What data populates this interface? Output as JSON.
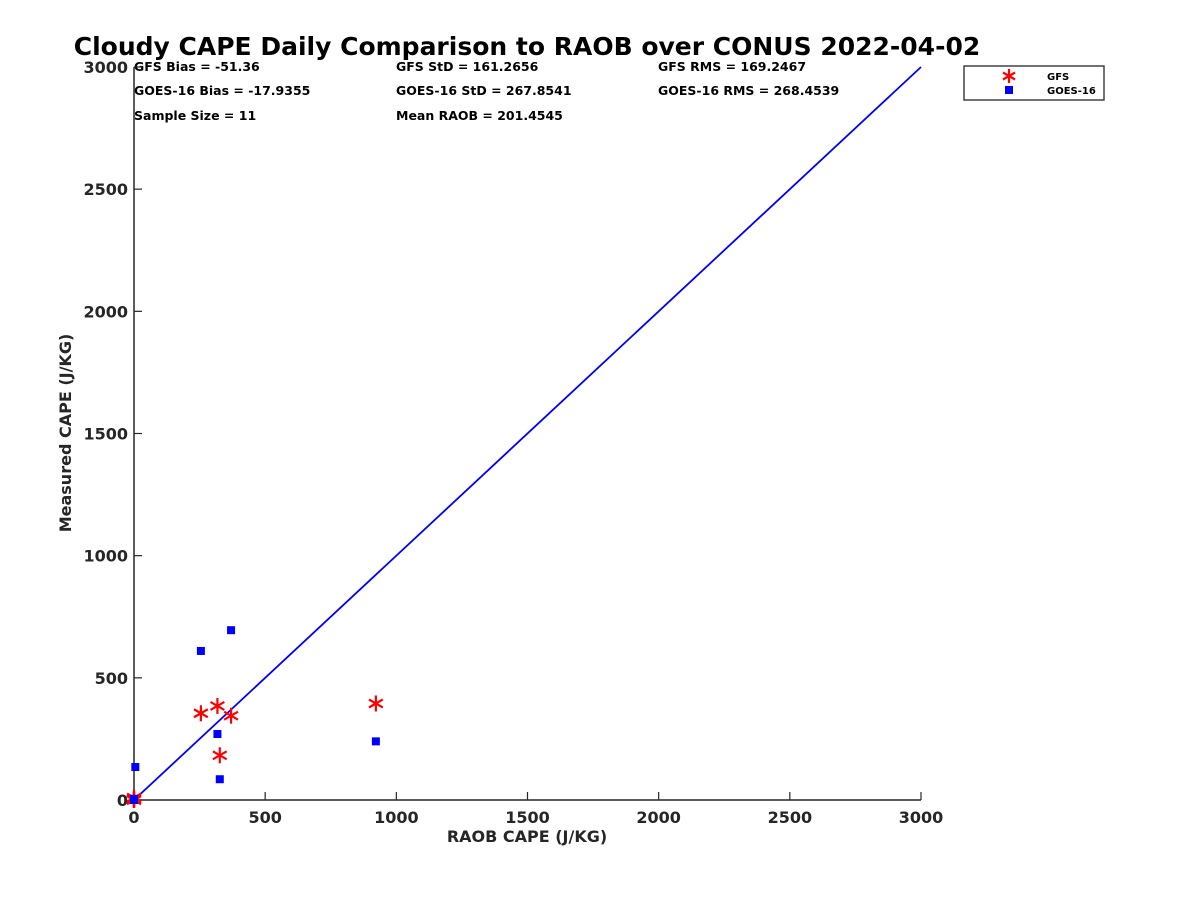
{
  "chart_data": {
    "type": "scatter",
    "title": "Cloudy CAPE Daily Comparison to RAOB over CONUS 2022-04-02",
    "xlabel": "RAOB CAPE (J/KG)",
    "ylabel": "Measured CAPE (J/KG)",
    "xlim": [
      0,
      3000
    ],
    "ylim": [
      0,
      3000
    ],
    "xticks": [
      "0",
      "500",
      "1000",
      "1500",
      "2000",
      "2500",
      "3000"
    ],
    "yticks": [
      "0",
      "500",
      "1000",
      "1500",
      "2000",
      "2500",
      "3000"
    ],
    "grid": false,
    "legend_position": "top-right, outside plot",
    "stats": [
      [
        "GFS Bias = -51.36",
        "GFS StD = 161.2656",
        "GFS RMS = 169.2467"
      ],
      [
        "GOES-16 Bias = -17.9355",
        "GOES-16 StD = 267.8541",
        "GOES-16 RMS = 268.4539"
      ],
      [
        "Sample Size = 11",
        "Mean RAOB = 201.4545",
        ""
      ]
    ],
    "reference_line": {
      "x": [
        0,
        3000
      ],
      "y": [
        0,
        3000
      ],
      "color": "#0000ff"
    },
    "series": [
      {
        "name": "GFS",
        "marker": "asterisk",
        "color": "#ff0000",
        "points": [
          [
            0,
            10
          ],
          [
            0,
            5
          ],
          [
            0,
            0
          ],
          [
            0,
            0
          ],
          [
            0,
            0
          ],
          [
            255,
            355
          ],
          [
            318,
            385
          ],
          [
            370,
            345
          ],
          [
            327,
            183
          ],
          [
            922,
            395
          ],
          [
            0,
            0
          ]
        ]
      },
      {
        "name": "GOES-16",
        "marker": "square",
        "color": "#0000ff",
        "points": [
          [
            5,
            135
          ],
          [
            0,
            5
          ],
          [
            0,
            0
          ],
          [
            0,
            0
          ],
          [
            0,
            0
          ],
          [
            255,
            610
          ],
          [
            370,
            695
          ],
          [
            318,
            270
          ],
          [
            327,
            85
          ],
          [
            922,
            240
          ],
          [
            0,
            0
          ]
        ]
      }
    ]
  }
}
